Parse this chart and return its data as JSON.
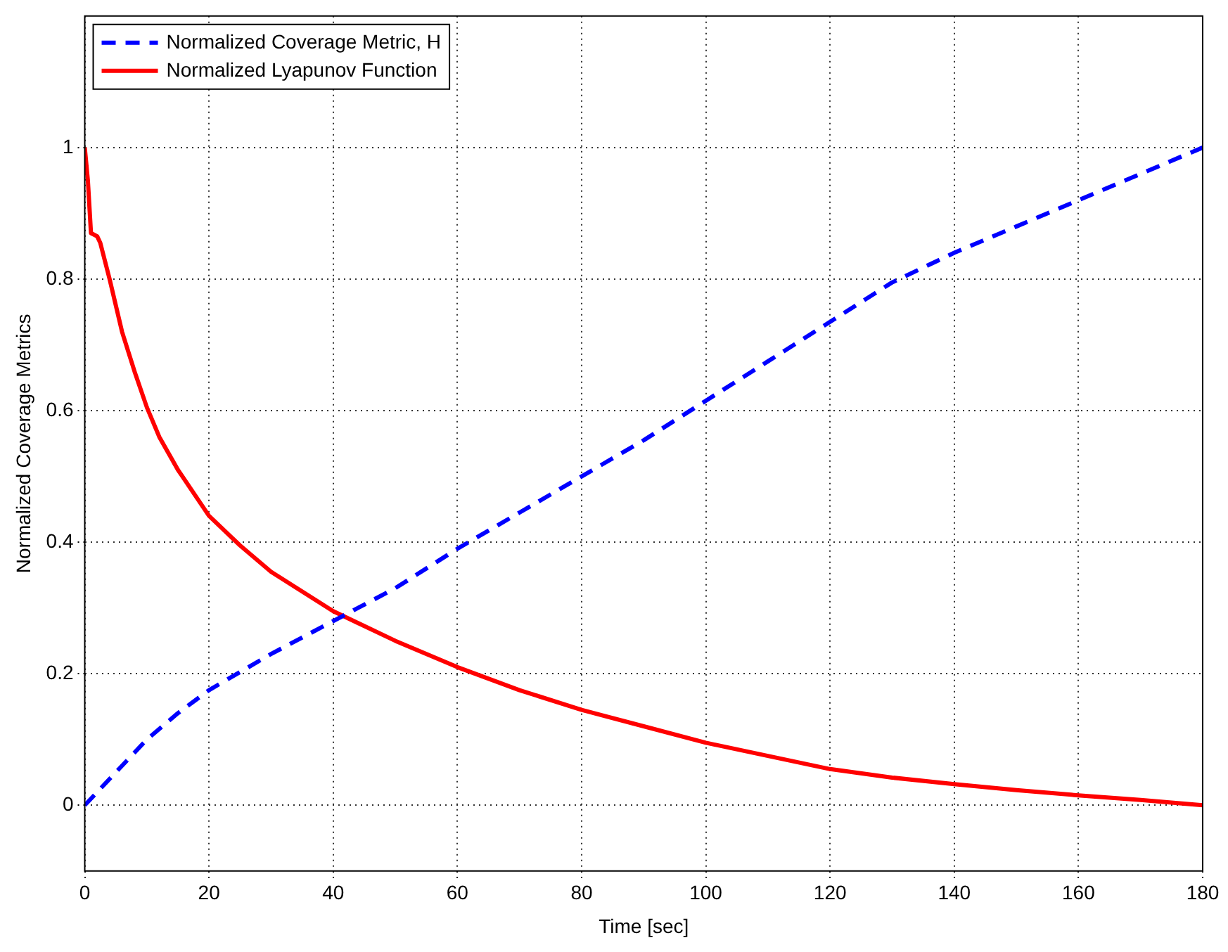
{
  "chart_data": {
    "type": "line",
    "xlabel": "Time [sec]",
    "ylabel": "Normalized Coverage Metrics",
    "xlim": [
      0,
      180
    ],
    "xticks": [
      0,
      20,
      40,
      60,
      80,
      100,
      120,
      140,
      160,
      180
    ],
    "ylim": [
      -0.1,
      1.2
    ],
    "yticks": [
      0,
      0.2,
      0.4,
      0.6,
      0.8,
      1
    ],
    "grid": true,
    "legend": "top left",
    "marker": "none",
    "series": [
      {
        "name": "Normalized Coverage Metric, H",
        "color": "#0000ff",
        "line_style": "dashed",
        "x": [
          0,
          2,
          5,
          10,
          15,
          20,
          30,
          40,
          50,
          60,
          70,
          80,
          90,
          100,
          110,
          120,
          130,
          140,
          150,
          160,
          170,
          180
        ],
        "values": [
          0,
          0.02,
          0.05,
          0.1,
          0.14,
          0.175,
          0.23,
          0.28,
          0.33,
          0.39,
          0.445,
          0.5,
          0.555,
          0.615,
          0.675,
          0.735,
          0.795,
          0.84,
          0.88,
          0.92,
          0.96,
          1.0
        ]
      },
      {
        "name": "Normalized Lyapunov Function",
        "color": "#ff0000",
        "line_style": "solid",
        "x": [
          0,
          0.5,
          1,
          2,
          2.5,
          4,
          6,
          8,
          10,
          12,
          15,
          20,
          25,
          30,
          35,
          40,
          50,
          60,
          70,
          80,
          90,
          100,
          110,
          120,
          130,
          140,
          150,
          160,
          170,
          180
        ],
        "values": [
          1,
          0.95,
          0.87,
          0.865,
          0.855,
          0.8,
          0.72,
          0.66,
          0.605,
          0.56,
          0.51,
          0.44,
          0.395,
          0.355,
          0.325,
          0.295,
          0.25,
          0.21,
          0.175,
          0.145,
          0.12,
          0.095,
          0.075,
          0.055,
          0.042,
          0.032,
          0.023,
          0.015,
          0.008,
          0
        ]
      }
    ]
  }
}
